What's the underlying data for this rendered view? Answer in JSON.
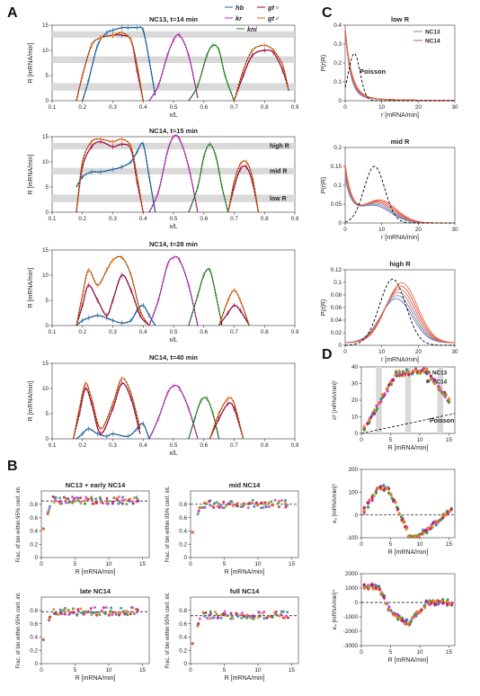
{
  "colors": {
    "hb": "#2f7fc1",
    "kr": "#d43fd3",
    "kni": "#3aa335",
    "gtf": "#c2185b",
    "gtm": "#ef7a22",
    "poisson": "#000000",
    "band": "#d9d9d9",
    "nc13": "#7f8fa6",
    "nc14": "#e0533d"
  },
  "panels": {
    "A": "A",
    "B": "B",
    "C": "C",
    "D": "D"
  },
  "legend": {
    "hb": "hb",
    "kr": "kr",
    "kni": "kni",
    "gtf": "gt♀",
    "gtm": "gt♂",
    "nc13": "NC13",
    "nc14": "NC14",
    "poisson": "Poisson"
  },
  "bands": {
    "high": "high R",
    "mid": "mid R",
    "low": "low R"
  },
  "chart_data": [
    {
      "id": "A1",
      "type": "line",
      "title": "NC13, t=14 min",
      "xlabel": "x/L",
      "ylabel": "R [mRNA/min]",
      "xlim": [
        0.1,
        0.9
      ],
      "ylim": [
        0,
        15
      ],
      "xticks": [
        "0.1",
        "0.2",
        "0.3",
        "0.4",
        "0.5",
        "0.6",
        "0.7",
        "0.8",
        "0.9"
      ],
      "yticks": [
        "0",
        "5",
        "10",
        "15"
      ],
      "series": [
        {
          "name": "hb",
          "color": "#2f7fc1",
          "x": [
            0.2,
            0.22,
            0.25,
            0.28,
            0.3,
            0.33,
            0.35,
            0.38,
            0.4,
            0.42,
            0.44
          ],
          "y": [
            0,
            4,
            11,
            13.5,
            14,
            14.5,
            14.5,
            14.5,
            14,
            8,
            1
          ]
        },
        {
          "name": "kr",
          "color": "#d43fd3",
          "x": [
            0.42,
            0.45,
            0.48,
            0.5,
            0.52,
            0.55,
            0.58
          ],
          "y": [
            0,
            3,
            9,
            12,
            13,
            9,
            0.5
          ]
        },
        {
          "name": "kni",
          "color": "#3aa335",
          "x": [
            0.55,
            0.58,
            0.61,
            0.63,
            0.65,
            0.67,
            0.7
          ],
          "y": [
            0,
            3,
            9,
            11,
            10,
            5,
            0
          ]
        },
        {
          "name": "gt♀",
          "color": "#c2185b",
          "x": [
            0.18,
            0.2,
            0.23,
            0.26,
            0.3,
            0.33,
            0.36,
            0.38,
            0.4,
            0.7,
            0.73,
            0.76,
            0.8,
            0.83,
            0.86,
            0.88
          ],
          "y": [
            0,
            5,
            11,
            12.5,
            13,
            13,
            12,
            6,
            0,
            0,
            5,
            9,
            10,
            9.5,
            6,
            2
          ]
        },
        {
          "name": "gt♂",
          "color": "#ef7a22",
          "x": [
            0.18,
            0.2,
            0.23,
            0.26,
            0.3,
            0.33,
            0.36,
            0.38,
            0.4,
            0.7,
            0.73,
            0.76,
            0.8,
            0.83,
            0.86,
            0.88
          ],
          "y": [
            0,
            5,
            11,
            12.5,
            13,
            13.5,
            12,
            7,
            0,
            0,
            6,
            10,
            11,
            10,
            7,
            2
          ]
        }
      ]
    },
    {
      "id": "A2",
      "type": "line",
      "title": "NC14, t=15 min",
      "xlabel": "x/L",
      "ylabel": "R [mRNA/min]",
      "xlim": [
        0.1,
        0.9
      ],
      "ylim": [
        0,
        15
      ],
      "xticks": [
        "0.1",
        "0.2",
        "0.3",
        "0.4",
        "0.5",
        "0.6",
        "0.7",
        "0.8",
        "0.9"
      ],
      "yticks": [
        "0",
        "5",
        "10",
        "15"
      ],
      "series": [
        {
          "name": "hb",
          "color": "#2f7fc1",
          "x": [
            0.18,
            0.2,
            0.23,
            0.26,
            0.3,
            0.33,
            0.36,
            0.38,
            0.4,
            0.42,
            0.44
          ],
          "y": [
            5,
            7,
            8,
            8,
            8.5,
            9,
            10,
            12,
            13.5,
            7,
            0
          ]
        },
        {
          "name": "kr",
          "color": "#d43fd3",
          "x": [
            0.42,
            0.45,
            0.48,
            0.5,
            0.52,
            0.55,
            0.58
          ],
          "y": [
            0,
            4,
            12,
            15,
            14.5,
            9,
            0
          ]
        },
        {
          "name": "kni",
          "color": "#3aa335",
          "x": [
            0.55,
            0.58,
            0.6,
            0.62,
            0.64,
            0.66,
            0.68
          ],
          "y": [
            0,
            5,
            11,
            13.5,
            11,
            5,
            0
          ]
        },
        {
          "name": "gt♀",
          "color": "#c2185b",
          "x": [
            0.18,
            0.2,
            0.23,
            0.26,
            0.3,
            0.33,
            0.36,
            0.38,
            0.4,
            0.68,
            0.7,
            0.72,
            0.74,
            0.76,
            0.78
          ],
          "y": [
            0,
            9,
            13,
            14,
            13,
            13.5,
            12.5,
            6,
            0,
            0,
            5,
            8.5,
            9,
            6,
            0
          ]
        },
        {
          "name": "gt♂",
          "color": "#ef7a22",
          "x": [
            0.18,
            0.2,
            0.23,
            0.26,
            0.3,
            0.33,
            0.36,
            0.38,
            0.4,
            0.68,
            0.7,
            0.72,
            0.74,
            0.76,
            0.78
          ],
          "y": [
            0,
            10,
            14,
            14.5,
            14,
            14.5,
            13,
            7,
            0,
            0,
            6,
            9.5,
            10,
            7,
            0
          ]
        }
      ]
    },
    {
      "id": "A3",
      "type": "line",
      "title": "NC14, t=28 min",
      "xlabel": "x/L",
      "ylabel": "R [mRNA/min]",
      "xlim": [
        0.1,
        0.9
      ],
      "ylim": [
        0,
        15
      ],
      "xticks": [
        "0.1",
        "0.2",
        "0.3",
        "0.4",
        "0.5",
        "0.6",
        "0.7",
        "0.8",
        "0.9"
      ],
      "yticks": [
        "0",
        "5",
        "10",
        "15"
      ],
      "series": [
        {
          "name": "hb",
          "color": "#2f7fc1",
          "x": [
            0.18,
            0.2,
            0.22,
            0.25,
            0.28,
            0.3,
            0.33,
            0.36,
            0.38,
            0.4,
            0.42,
            0.44
          ],
          "y": [
            0,
            1,
            1.5,
            2,
            1.5,
            1,
            0.5,
            1,
            3,
            4,
            2,
            0
          ]
        },
        {
          "name": "kr",
          "color": "#d43fd3",
          "x": [
            0.42,
            0.45,
            0.48,
            0.5,
            0.52,
            0.55,
            0.58
          ],
          "y": [
            0,
            5,
            12,
            13.5,
            13,
            8,
            0
          ]
        },
        {
          "name": "kni",
          "color": "#3aa335",
          "x": [
            0.55,
            0.58,
            0.6,
            0.62,
            0.64,
            0.66
          ],
          "y": [
            0,
            6,
            10,
            11,
            6,
            0
          ]
        },
        {
          "name": "gt♀",
          "color": "#c2185b",
          "x": [
            0.18,
            0.2,
            0.22,
            0.25,
            0.28,
            0.3,
            0.33,
            0.36,
            0.39,
            0.42,
            0.65,
            0.68,
            0.7,
            0.72,
            0.75
          ],
          "y": [
            0,
            4,
            8,
            5,
            2,
            5,
            10,
            7,
            2,
            0,
            0,
            2.5,
            4,
            3,
            0
          ]
        },
        {
          "name": "gt♂",
          "color": "#ef7a22",
          "x": [
            0.18,
            0.2,
            0.22,
            0.25,
            0.28,
            0.3,
            0.33,
            0.36,
            0.39,
            0.42,
            0.65,
            0.68,
            0.7,
            0.72,
            0.75
          ],
          "y": [
            0,
            6,
            11,
            8,
            11,
            13,
            13.5,
            10,
            3,
            0,
            0,
            5,
            7,
            5,
            0
          ]
        }
      ]
    },
    {
      "id": "A4",
      "type": "line",
      "title": "NC14, t=40 min",
      "xlabel": "x/L",
      "ylabel": "R [mRNA/min]",
      "xlim": [
        0.1,
        0.9
      ],
      "ylim": [
        0,
        15
      ],
      "xticks": [
        "0.1",
        "0.2",
        "0.3",
        "0.4",
        "0.5",
        "0.6",
        "0.7",
        "0.8",
        "0.9"
      ],
      "yticks": [
        "0",
        "5",
        "10",
        "15"
      ],
      "series": [
        {
          "name": "hb",
          "color": "#2f7fc1",
          "x": [
            0.18,
            0.2,
            0.22,
            0.25,
            0.28,
            0.3,
            0.35,
            0.38,
            0.4,
            0.42
          ],
          "y": [
            0,
            1,
            2,
            1,
            0.5,
            1,
            0.5,
            2,
            3,
            0
          ]
        },
        {
          "name": "kr",
          "color": "#d43fd3",
          "x": [
            0.42,
            0.45,
            0.48,
            0.5,
            0.52,
            0.55,
            0.58
          ],
          "y": [
            0,
            4,
            9,
            10.5,
            10,
            6,
            0
          ]
        },
        {
          "name": "kni",
          "color": "#3aa335",
          "x": [
            0.55,
            0.57,
            0.59,
            0.61,
            0.63,
            0.65
          ],
          "y": [
            0,
            4,
            7.5,
            8,
            5,
            0
          ]
        },
        {
          "name": "gt♀",
          "color": "#c2185b",
          "x": [
            0.17,
            0.19,
            0.21,
            0.23,
            0.26,
            0.3,
            0.33,
            0.36,
            0.39,
            0.62,
            0.65,
            0.68,
            0.7,
            0.73
          ],
          "y": [
            0,
            5,
            10,
            7,
            1,
            6,
            11,
            8,
            1,
            0,
            4,
            7,
            6,
            0
          ]
        },
        {
          "name": "gt♂",
          "color": "#ef7a22",
          "x": [
            0.17,
            0.19,
            0.21,
            0.23,
            0.26,
            0.3,
            0.33,
            0.36,
            0.39,
            0.62,
            0.65,
            0.68,
            0.7,
            0.73
          ],
          "y": [
            0,
            6,
            11,
            8,
            2,
            7,
            12,
            9,
            2,
            0,
            5,
            8,
            7,
            0
          ]
        }
      ]
    },
    {
      "id": "B1",
      "type": "scatter",
      "title": "NC13 + early NC14",
      "xlabel": "R [mRNA/min]",
      "ylabel": "Frac. of bin within 95% conf. int.",
      "xlim": [
        0,
        16
      ],
      "ylim": [
        0,
        1
      ],
      "xticks": [
        "0",
        "5",
        "10",
        "15"
      ],
      "yticks": [
        "0",
        "0.2",
        "0.4",
        "0.6",
        "0.8"
      ],
      "ref": 0.85
    },
    {
      "id": "B2",
      "type": "scatter",
      "title": "mid NC14",
      "xlabel": "R [mRNA/min]",
      "ylabel": "Frac. of bin within 95% conf. int.",
      "xlim": [
        0,
        16
      ],
      "ylim": [
        0,
        1
      ],
      "xticks": [
        "0",
        "5",
        "10",
        "15"
      ],
      "yticks": [
        "0",
        "0.2",
        "0.4",
        "0.6",
        "0.8"
      ],
      "ref": 0.8
    },
    {
      "id": "B3",
      "type": "scatter",
      "title": "late NC14",
      "xlabel": "R [mRNA/min]",
      "ylabel": "Frac. of bin within 95% conf. int.",
      "xlim": [
        0,
        16
      ],
      "ylim": [
        0,
        1
      ],
      "xticks": [
        "0",
        "5",
        "10",
        "15"
      ],
      "yticks": [
        "0",
        "0.2",
        "0.4",
        "0.6",
        "0.8"
      ],
      "ref": 0.78
    },
    {
      "id": "B4",
      "type": "scatter",
      "title": "full NC14",
      "xlabel": "R [mRNA/min]",
      "ylabel": "Frac. of bin within 95% conf. int.",
      "xlim": [
        0,
        16
      ],
      "ylim": [
        0,
        1
      ],
      "xticks": [
        "0",
        "5",
        "10",
        "15"
      ],
      "yticks": [
        "0",
        "0.2",
        "0.4",
        "0.6",
        "0.8"
      ],
      "ref": 0.72
    },
    {
      "id": "C1",
      "type": "line",
      "title": "low R",
      "xlabel": "r [mRNA/min]",
      "ylabel": "P(r|R)",
      "xlim": [
        0,
        30
      ],
      "ylim": [
        0,
        0.4
      ],
      "xticks": [
        "0",
        "10",
        "20",
        "30"
      ],
      "yticks": [
        "0",
        "0.1",
        "0.2",
        "0.3",
        "0.4"
      ],
      "poisson_center": 2.5
    },
    {
      "id": "C2",
      "type": "line",
      "title": "mid R",
      "xlabel": "r [mRNA/min]",
      "ylabel": "P(r|R)",
      "xlim": [
        0,
        30
      ],
      "ylim": [
        0,
        0.2
      ],
      "xticks": [
        "0",
        "10",
        "20",
        "30"
      ],
      "yticks": [
        "0",
        "0.05",
        "0.1",
        "0.15",
        "0.2"
      ],
      "poisson_center": 8
    },
    {
      "id": "C3",
      "type": "line",
      "title": "high R",
      "xlabel": "r [mRNA/min]",
      "ylabel": "P(r|R)",
      "xlim": [
        0,
        30
      ],
      "ylim": [
        0,
        0.12
      ],
      "xticks": [
        "0",
        "10",
        "20",
        "30"
      ],
      "yticks": [
        "0",
        "0.02",
        "0.04",
        "0.06",
        "0.08",
        "0.1",
        "0.12"
      ],
      "poisson_center": 13
    },
    {
      "id": "D1",
      "type": "scatter",
      "xlabel": "R [mRNA/min]",
      "ylabel": "σ² [mRNA/min]²",
      "xlim": [
        0,
        16
      ],
      "ylim": [
        0,
        40
      ],
      "xticks": [
        "0",
        "5",
        "10",
        "15"
      ],
      "yticks": [
        "0",
        "10",
        "20",
        "30",
        "40"
      ]
    },
    {
      "id": "D2",
      "type": "scatter",
      "xlabel": "R [mRNA/min]",
      "ylabel": "κ₃ [mRNA/min]³",
      "xlim": [
        0,
        16
      ],
      "ylim": [
        -100,
        200
      ],
      "xticks": [
        "0",
        "5",
        "10",
        "15"
      ],
      "yticks": [
        "-100",
        "0",
        "100",
        "200"
      ]
    },
    {
      "id": "D3",
      "type": "scatter",
      "xlabel": "R [mRNA/min]",
      "ylabel": "κ₄ [mRNA/min]⁴",
      "xlim": [
        0,
        16
      ],
      "ylim": [
        -3000,
        2000
      ],
      "xticks": [
        "0",
        "5",
        "10",
        "15"
      ],
      "yticks": [
        "-3000",
        "-2000",
        "-1000",
        "0",
        "1000",
        "2000"
      ]
    }
  ]
}
